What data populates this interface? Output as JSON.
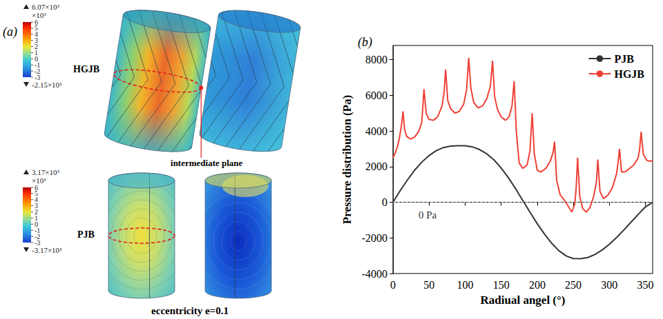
{
  "panel_a": {
    "label": "(a)",
    "rows": [
      {
        "name": "HGJB",
        "colorbar": {
          "max_label": "6.07×10³",
          "multiplier": "×10³",
          "min_label": "-2.15×10³",
          "range": [
            -3,
            6
          ],
          "ticks": [
            6,
            5,
            4,
            3,
            2,
            1,
            0,
            -1,
            -2,
            -3
          ]
        },
        "annotation": "intermediate plane"
      },
      {
        "name": "PJB",
        "colorbar": {
          "max_label": "3.17×10³",
          "multiplier": "×10³",
          "min_label": "-3.17×10³",
          "range": [
            -3,
            6
          ],
          "ticks": [
            6,
            5,
            4,
            3,
            2,
            1,
            0,
            -1,
            -2,
            -3
          ]
        }
      }
    ],
    "caption": "eccentricity e=0.1"
  },
  "chart_data": {
    "type": "line",
    "label": "(b)",
    "xlabel": "Radiual angel (°)",
    "ylabel": "Pressure distribution (Pa)",
    "xlim": [
      0,
      360
    ],
    "xticks": [
      0,
      50,
      100,
      150,
      200,
      250,
      300,
      350
    ],
    "ylim": [
      -4000,
      8800
    ],
    "yticks": [
      -4000,
      -2000,
      0,
      2000,
      4000,
      6000,
      8000
    ],
    "grid": false,
    "legend": "upper right",
    "reference_lines": [
      {
        "y": 0,
        "line_style": "dashed"
      }
    ],
    "annotations": [
      {
        "text": "0 Pa",
        "x": 48,
        "y": -700
      }
    ],
    "series": [
      {
        "name": "PJB",
        "color": "#333333",
        "line_style": "solid",
        "x": [
          0,
          10,
          20,
          30,
          40,
          50,
          60,
          70,
          80,
          90,
          100,
          110,
          120,
          130,
          140,
          150,
          160,
          170,
          180,
          190,
          200,
          210,
          220,
          230,
          240,
          250,
          260,
          270,
          280,
          290,
          300,
          310,
          320,
          330,
          340,
          350,
          360
        ],
        "values": [
          0,
          650,
          1250,
          1800,
          2250,
          2620,
          2900,
          3070,
          3150,
          3170,
          3170,
          3110,
          2960,
          2720,
          2380,
          1920,
          1380,
          760,
          100,
          -560,
          -1200,
          -1780,
          -2300,
          -2720,
          -3010,
          -3160,
          -3170,
          -3100,
          -2930,
          -2680,
          -2360,
          -1980,
          -1560,
          -1120,
          -680,
          -260,
          0
        ]
      },
      {
        "name": "HGJB",
        "color": "#ef4136",
        "line_style": "solid",
        "x": [
          0,
          3,
          6,
          9,
          12,
          14,
          16,
          19,
          24,
          30,
          36,
          40,
          43,
          46,
          50,
          56,
          62,
          68,
          71,
          73,
          76,
          80,
          86,
          92,
          98,
          102,
          105,
          108,
          112,
          118,
          124,
          130,
          135,
          138,
          141,
          145,
          150,
          156,
          161,
          165,
          168,
          171,
          175,
          180,
          186,
          190,
          193,
          196,
          200,
          205,
          212,
          218,
          222,
          224,
          227,
          232,
          238,
          244,
          248,
          252,
          254,
          256,
          259,
          263,
          268,
          273,
          278,
          282,
          284,
          287,
          292,
          298,
          304,
          310,
          312,
          314,
          317,
          322,
          328,
          334,
          340,
          342,
          344,
          347,
          352,
          357,
          360
        ],
        "values": [
          2500,
          2750,
          3100,
          3600,
          4400,
          5100,
          4100,
          3700,
          3550,
          3650,
          4000,
          4500,
          6350,
          5000,
          4650,
          4600,
          4800,
          5400,
          6200,
          7450,
          5700,
          5250,
          5000,
          5100,
          5500,
          6300,
          8100,
          6400,
          5600,
          5300,
          5400,
          5800,
          6500,
          7950,
          5900,
          5200,
          4800,
          4600,
          4800,
          5400,
          6800,
          4000,
          2200,
          1900,
          2100,
          2900,
          5000,
          2700,
          1800,
          1700,
          1900,
          2300,
          2800,
          3400,
          1200,
          400,
          100,
          -300,
          -550,
          -100,
          800,
          2500,
          300,
          -350,
          -550,
          -300,
          300,
          1100,
          2400,
          600,
          200,
          400,
          800,
          1600,
          2200,
          3000,
          1700,
          1700,
          1900,
          2100,
          2500,
          3000,
          3950,
          2700,
          2350,
          2300,
          2350
        ]
      }
    ]
  }
}
